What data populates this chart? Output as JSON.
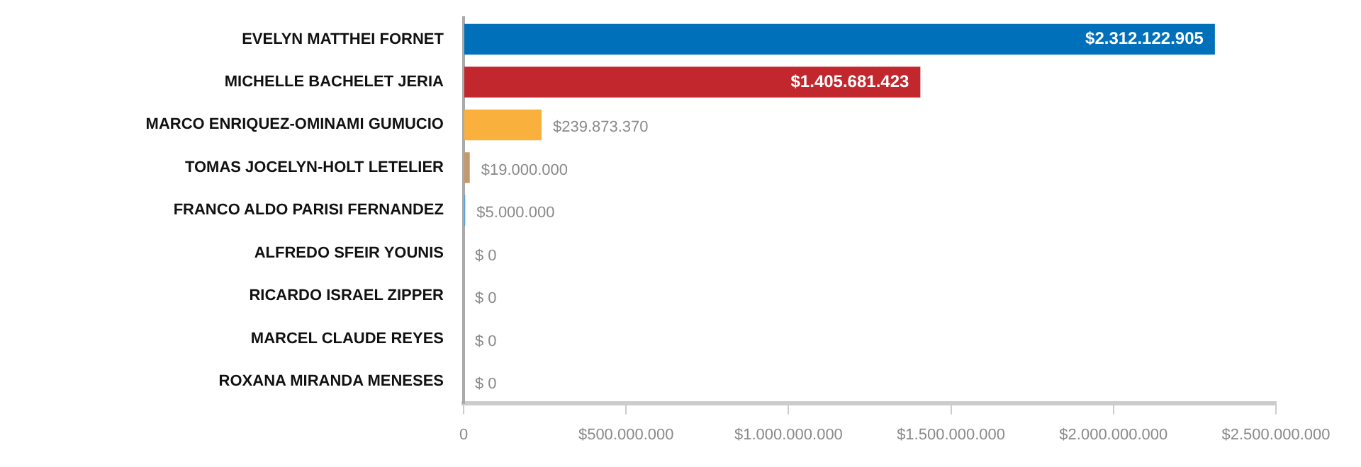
{
  "chart_data": {
    "type": "bar",
    "orientation": "horizontal",
    "categories": [
      "EVELYN MATTHEI FORNET",
      "MICHELLE BACHELET JERIA",
      "MARCO ENRIQUEZ-OMINAMI GUMUCIO",
      "TOMAS JOCELYN-HOLT LETELIER",
      "FRANCO ALDO PARISI FERNANDEZ",
      "ALFREDO SFEIR YOUNIS",
      "RICARDO ISRAEL ZIPPER",
      "MARCEL CLAUDE REYES",
      "ROXANA MIRANDA MENESES"
    ],
    "values": [
      2312122905,
      1405681423,
      239873370,
      19000000,
      5000000,
      0,
      0,
      0,
      0
    ],
    "value_labels": [
      "$2.312.122.905",
      "$1.405.681.423",
      "$239.873.370",
      "$19.000.000",
      "$5.000.000",
      "$ 0",
      "$ 0",
      "$ 0",
      "$ 0"
    ],
    "colors": [
      "#0070bb",
      "#c1272d",
      "#f9b03c",
      "#c49a6c",
      "#45a5e0",
      "#999999",
      "#999999",
      "#999999",
      "#999999"
    ],
    "xlim": [
      0,
      2500000000
    ],
    "xticks": [
      0,
      {
        "value": 500000000,
        "label": "$500.000.000"
      },
      {
        "value": 1000000000,
        "label": "$1.000.000.000"
      },
      {
        "value": 1500000000,
        "label": "$1.500.000.000"
      },
      {
        "value": 2000000000,
        "label": "$2.000.000.000"
      },
      {
        "value": 2500000000,
        "label": "$2.500.000.000"
      }
    ],
    "grid": false,
    "legend": false
  }
}
